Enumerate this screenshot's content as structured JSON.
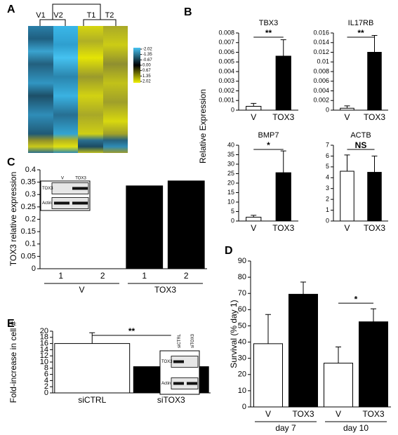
{
  "chart_data": [
    {
      "type": "heatmap",
      "panel": "A",
      "columns": [
        "V1",
        "V2",
        "T1",
        "T2"
      ],
      "colorbar_ticks": [
        -2.02,
        -1.35,
        -0.67,
        {
          "value": 0,
          "label": "0.00"
        },
        0.67,
        1.35,
        2.02
      ]
    },
    {
      "type": "bar",
      "panel": "B",
      "title": "TBX3",
      "ylabel": "Relative Expression",
      "categories": [
        "V",
        "TOX3"
      ],
      "values": [
        0.0004,
        0.0056
      ],
      "errors": [
        0.0003,
        0.0017
      ],
      "colors": [
        "#ffffff",
        "#000000"
      ],
      "ylim": [
        0,
        0.008
      ],
      "yticks": [
        0,
        0.001,
        0.002,
        0.003,
        0.004,
        0.005,
        0.006,
        0.007,
        0.008
      ],
      "annotations": [
        "**"
      ]
    },
    {
      "type": "bar",
      "title": "IL17RB",
      "categories": [
        "V",
        "TOX3"
      ],
      "values": [
        0.0004,
        0.012
      ],
      "errors": [
        0.0005,
        0.0035
      ],
      "colors": [
        "#ffffff",
        "#000000"
      ],
      "ylim": [
        0,
        0.016
      ],
      "yticks": [
        0,
        0.002,
        0.004,
        0.006,
        0.008,
        0.01,
        0.012,
        0.014,
        0.016
      ],
      "annotations": [
        "**"
      ]
    },
    {
      "type": "bar",
      "title": "BMP7",
      "categories": [
        "V",
        "TOX3"
      ],
      "values": [
        2,
        25.5
      ],
      "errors": [
        1,
        11.5
      ],
      "colors": [
        "#ffffff",
        "#000000"
      ],
      "ylim": [
        0,
        40
      ],
      "yticks": [
        0,
        5,
        10,
        15,
        20,
        25,
        30,
        35,
        40
      ],
      "annotations": [
        "*"
      ]
    },
    {
      "type": "bar",
      "title": "ACTB",
      "categories": [
        "V",
        "TOX3"
      ],
      "values": [
        4.6,
        4.5
      ],
      "errors": [
        1.5,
        1.5
      ],
      "colors": [
        "#ffffff",
        "#000000"
      ],
      "ylim": [
        0,
        7
      ],
      "yticks": [
        0,
        1,
        2,
        3,
        4,
        5,
        6,
        7
      ],
      "annotations": [
        "NS"
      ]
    },
    {
      "type": "bar",
      "panel": "C",
      "ylabel": "TOX3 relative expression",
      "categories": [
        "1",
        "2",
        "1",
        "2"
      ],
      "groups": [
        "V",
        "TOX3"
      ],
      "values": [
        0,
        0,
        0.335,
        0.355
      ],
      "colors": [
        "#000000",
        "#000000",
        "#000000",
        "#000000"
      ],
      "ylim": [
        0,
        0.4
      ],
      "yticks": [
        0,
        0.05,
        0.1,
        0.15,
        0.2,
        0.25,
        0.3,
        0.35,
        0.4
      ],
      "inset": {
        "lanes": [
          "V",
          "TOX3"
        ],
        "bands": [
          "TOX3",
          "Actin"
        ]
      }
    },
    {
      "type": "bar",
      "panel": "D",
      "ylabel": "Survival (% day 1)",
      "categories": [
        "V",
        "TOX3",
        "V",
        "TOX3"
      ],
      "groups": [
        "day 7",
        "day 10"
      ],
      "values": [
        39,
        69.5,
        27,
        52.5
      ],
      "errors": [
        18,
        7.5,
        10,
        8
      ],
      "colors": [
        "#ffffff",
        "#000000",
        "#ffffff",
        "#000000"
      ],
      "ylim": [
        0,
        90
      ],
      "yticks": [
        0,
        10,
        20,
        30,
        40,
        50,
        60,
        70,
        80,
        90
      ],
      "annotations": [
        "*"
      ]
    },
    {
      "type": "bar",
      "panel": "E",
      "ylabel": "Fold-increase in cell #",
      "categories": [
        "siCTRL",
        "siTOX3"
      ],
      "values": [
        16,
        8.5
      ],
      "errors": [
        3.5,
        2.3
      ],
      "colors": [
        "#ffffff",
        "#000000"
      ],
      "ylim": [
        0,
        20
      ],
      "yticks": [
        0,
        2,
        4,
        6,
        8,
        10,
        12,
        14,
        16,
        18,
        20
      ],
      "annotations": [
        "**"
      ],
      "inset": {
        "lanes": [
          "siCTRL",
          "siTOX3"
        ],
        "bands": [
          "TOX3",
          "Actin"
        ]
      }
    }
  ]
}
